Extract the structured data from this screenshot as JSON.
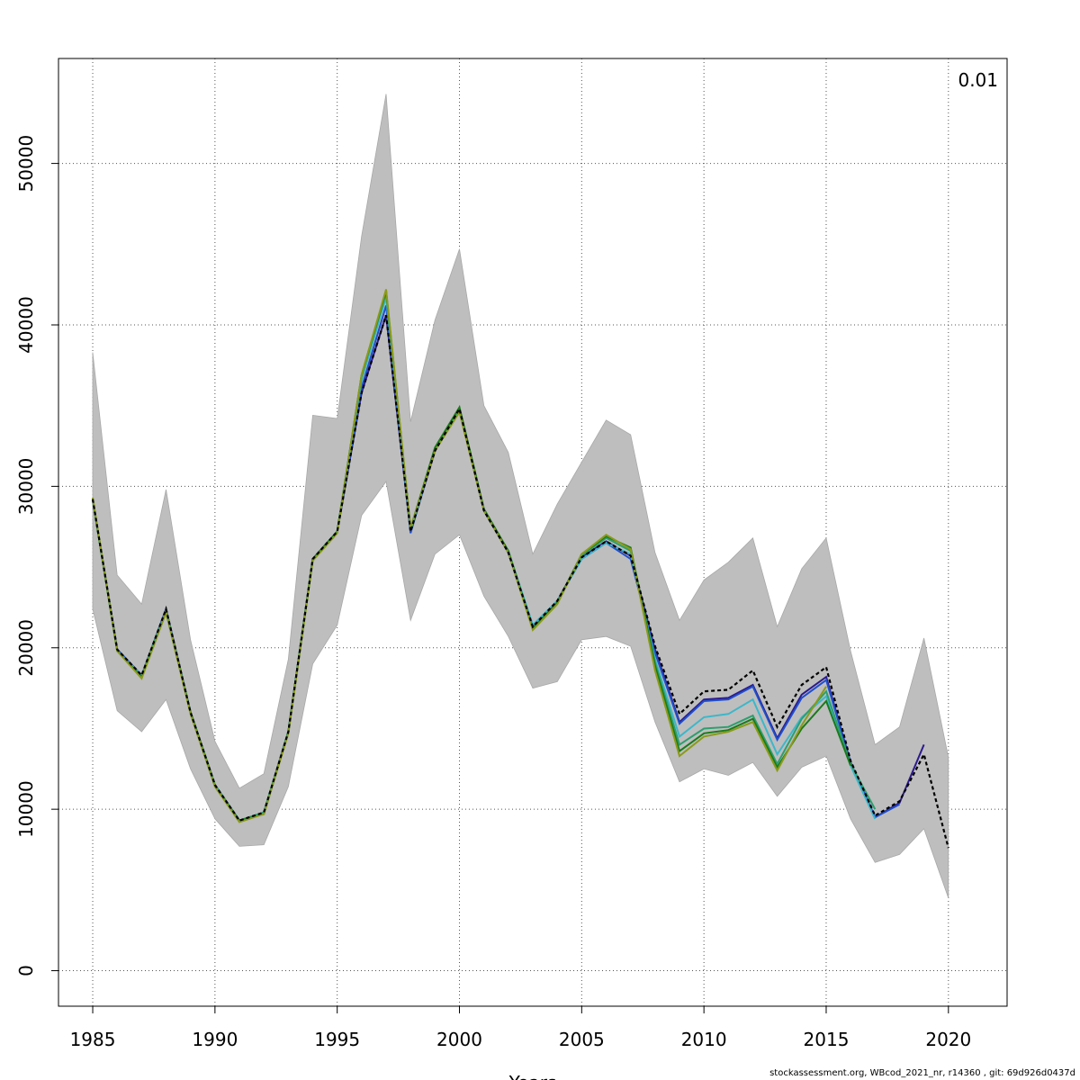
{
  "corner_label": "0.01",
  "footer": "stockassessment.org, WBcod_2021_nr, r14360 , git: 69d926d0437d",
  "colors": {
    "band": "#bebebe",
    "grid": "#555555",
    "series": [
      "#000000",
      "#2d1a8c",
      "#1f4fcc",
      "#3db7c9",
      "#2e9e6e",
      "#1b7a1b",
      "#8a9a1a"
    ]
  },
  "chart_data": {
    "type": "line",
    "title": "",
    "xlabel": "Years",
    "ylabel": "",
    "xlim": [
      1983.6,
      2022.4
    ],
    "ylim": [
      -2200,
      56500
    ],
    "xticks": [
      1985,
      1990,
      1995,
      2000,
      2005,
      2010,
      2015,
      2020
    ],
    "yticks": [
      0,
      10000,
      20000,
      30000,
      40000,
      50000
    ],
    "grid": true,
    "band": {
      "name": "confidence interval",
      "x": [
        1985,
        1986,
        1987,
        1988,
        1989,
        1990,
        1991,
        1992,
        1993,
        1994,
        1995,
        1996,
        1997,
        1998,
        1999,
        2000,
        2001,
        2002,
        2003,
        2004,
        2005,
        2006,
        2007,
        2008,
        2009,
        2010,
        2011,
        2012,
        2013,
        2014,
        2015,
        2016,
        2017,
        2018,
        2019,
        2020
      ],
      "upper": [
        38300,
        24500,
        22700,
        29800,
        20500,
        14200,
        11300,
        12200,
        19300,
        34400,
        34200,
        45500,
        54300,
        34000,
        40300,
        44700,
        35000,
        32100,
        25800,
        28900,
        31500,
        34100,
        33200,
        25900,
        21700,
        24200,
        25300,
        26800,
        21300,
        24900,
        26800,
        19800,
        14000,
        15100,
        20600,
        13200
      ],
      "lower": [
        22400,
        16100,
        14800,
        16800,
        12500,
        9400,
        7700,
        7800,
        11400,
        19000,
        21400,
        28200,
        30300,
        21700,
        25800,
        27000,
        23200,
        20700,
        17500,
        17900,
        20500,
        20700,
        20100,
        15400,
        11700,
        12500,
        12100,
        12900,
        10800,
        12600,
        13300,
        9400,
        6700,
        7200,
        8800,
        4500
      ]
    },
    "series": [
      {
        "color": "#000000",
        "dashed": true,
        "x": [
          1985,
          1986,
          1987,
          1988,
          1989,
          1990,
          1991,
          1992,
          1993,
          1994,
          1995,
          1996,
          1997,
          1998,
          1999,
          2000,
          2001,
          2002,
          2003,
          2004,
          2005,
          2006,
          2007,
          2008,
          2009,
          2010,
          2011,
          2012,
          2013,
          2014,
          2015,
          2016,
          2017,
          2018,
          2019,
          2020
        ],
        "values": [
          29200,
          19900,
          18300,
          22400,
          16000,
          11500,
          9300,
          9800,
          14800,
          25500,
          27200,
          35800,
          40600,
          27200,
          32200,
          34800,
          28500,
          25900,
          21300,
          22900,
          25600,
          26600,
          25700,
          20100,
          15900,
          17300,
          17400,
          18600,
          15100,
          17700,
          18800,
          13000,
          9600,
          10500,
          13400,
          7600
        ]
      },
      {
        "color": "#2d1a8c",
        "x": [
          1985,
          1986,
          1987,
          1988,
          1989,
          1990,
          1991,
          1992,
          1993,
          1994,
          1995,
          1996,
          1997,
          1998,
          1999,
          2000,
          2001,
          2002,
          2003,
          2004,
          2005,
          2006,
          2007,
          2008,
          2009,
          2010,
          2011,
          2012,
          2013,
          2014,
          2015,
          2016,
          2017,
          2018,
          2019
        ],
        "values": [
          29200,
          19900,
          18300,
          22400,
          16000,
          11500,
          9300,
          9800,
          14800,
          25500,
          27200,
          35800,
          40600,
          27200,
          32200,
          34800,
          28500,
          25900,
          21300,
          22900,
          25600,
          26600,
          25700,
          19900,
          15400,
          16800,
          16900,
          17700,
          14400,
          17100,
          18200,
          12900,
          9500,
          10400,
          14000
        ]
      },
      {
        "color": "#1f4fcc",
        "x": [
          1985,
          1986,
          1987,
          1988,
          1989,
          1990,
          1991,
          1992,
          1993,
          1994,
          1995,
          1996,
          1997,
          1998,
          1999,
          2000,
          2001,
          2002,
          2003,
          2004,
          2005,
          2006,
          2007,
          2008,
          2009,
          2010,
          2011,
          2012,
          2013,
          2014,
          2015,
          2016,
          2017,
          2018
        ],
        "values": [
          29200,
          19900,
          18300,
          22300,
          16000,
          11500,
          9300,
          9800,
          14800,
          25500,
          27200,
          36100,
          41200,
          27100,
          32300,
          34800,
          28500,
          25900,
          21400,
          22900,
          25500,
          26500,
          25500,
          19700,
          15300,
          16700,
          16800,
          17600,
          14300,
          16900,
          18000,
          12900,
          9500,
          10300
        ]
      },
      {
        "color": "#3db7c9",
        "x": [
          1985,
          1986,
          1987,
          1988,
          1989,
          1990,
          1991,
          1992,
          1993,
          1994,
          1995,
          1996,
          1997,
          1998,
          1999,
          2000,
          2001,
          2002,
          2003,
          2004,
          2005,
          2006,
          2007,
          2008,
          2009,
          2010,
          2011,
          2012,
          2013,
          2014,
          2015,
          2016,
          2017
        ],
        "values": [
          29200,
          19800,
          18300,
          22300,
          16000,
          11500,
          9300,
          9800,
          14800,
          25500,
          27200,
          36600,
          41700,
          27300,
          32300,
          34800,
          28500,
          26000,
          21400,
          22900,
          25500,
          26500,
          25800,
          19300,
          14500,
          15700,
          15900,
          16800,
          13400,
          15700,
          17000,
          12700,
          9400
        ]
      },
      {
        "color": "#2e9e6e",
        "x": [
          1985,
          1986,
          1987,
          1988,
          1989,
          1990,
          1991,
          1992,
          1993,
          1994,
          1995,
          1996,
          1997,
          1998,
          1999,
          2000,
          2001,
          2002,
          2003,
          2004,
          2005,
          2006,
          2007,
          2008,
          2009,
          2010,
          2011,
          2012,
          2013,
          2014,
          2015,
          2016,
          2017
        ],
        "values": [
          29200,
          19800,
          18200,
          22300,
          16000,
          11500,
          9300,
          9800,
          14800,
          25400,
          27200,
          36800,
          42000,
          27300,
          32300,
          34800,
          28500,
          26000,
          21200,
          22800,
          25700,
          26800,
          26000,
          19100,
          14000,
          15000,
          15100,
          15800,
          12800,
          15600,
          17300,
          12800,
          10000
        ]
      },
      {
        "color": "#1b7a1b",
        "x": [
          1985,
          1986,
          1987,
          1988,
          1989,
          1990,
          1991,
          1992,
          1993,
          1994,
          1995,
          1996,
          1997,
          1998,
          1999,
          2000,
          2001,
          2002,
          2003,
          2004,
          2005,
          2006,
          2007,
          2008,
          2009,
          2010,
          2011,
          2012,
          2013,
          2014,
          2015,
          2016
        ],
        "values": [
          29200,
          19800,
          18200,
          22200,
          16000,
          11400,
          9300,
          9700,
          14800,
          25500,
          27200,
          36900,
          42100,
          27400,
          32400,
          34900,
          28600,
          26000,
          21200,
          22800,
          25800,
          26900,
          26200,
          18900,
          13600,
          14700,
          14900,
          15600,
          12600,
          15000,
          16700,
          12700
        ]
      },
      {
        "color": "#8a9a1a",
        "x": [
          1985,
          1986,
          1987,
          1988,
          1989,
          1990,
          1991,
          1992,
          1993,
          1994,
          1995,
          1996,
          1997,
          1998,
          1999,
          2000,
          2001,
          2002,
          2003,
          2004,
          2005,
          2006,
          2007,
          2008,
          2009,
          2010,
          2011,
          2012,
          2013,
          2014,
          2015
        ],
        "values": [
          29300,
          19800,
          18100,
          22200,
          15900,
          11400,
          9200,
          9700,
          14700,
          25400,
          27100,
          36900,
          42200,
          27400,
          32200,
          34600,
          28500,
          25900,
          21100,
          22700,
          25800,
          27000,
          26100,
          18600,
          13300,
          14500,
          14800,
          15400,
          12400,
          15200,
          17600
        ]
      }
    ]
  }
}
